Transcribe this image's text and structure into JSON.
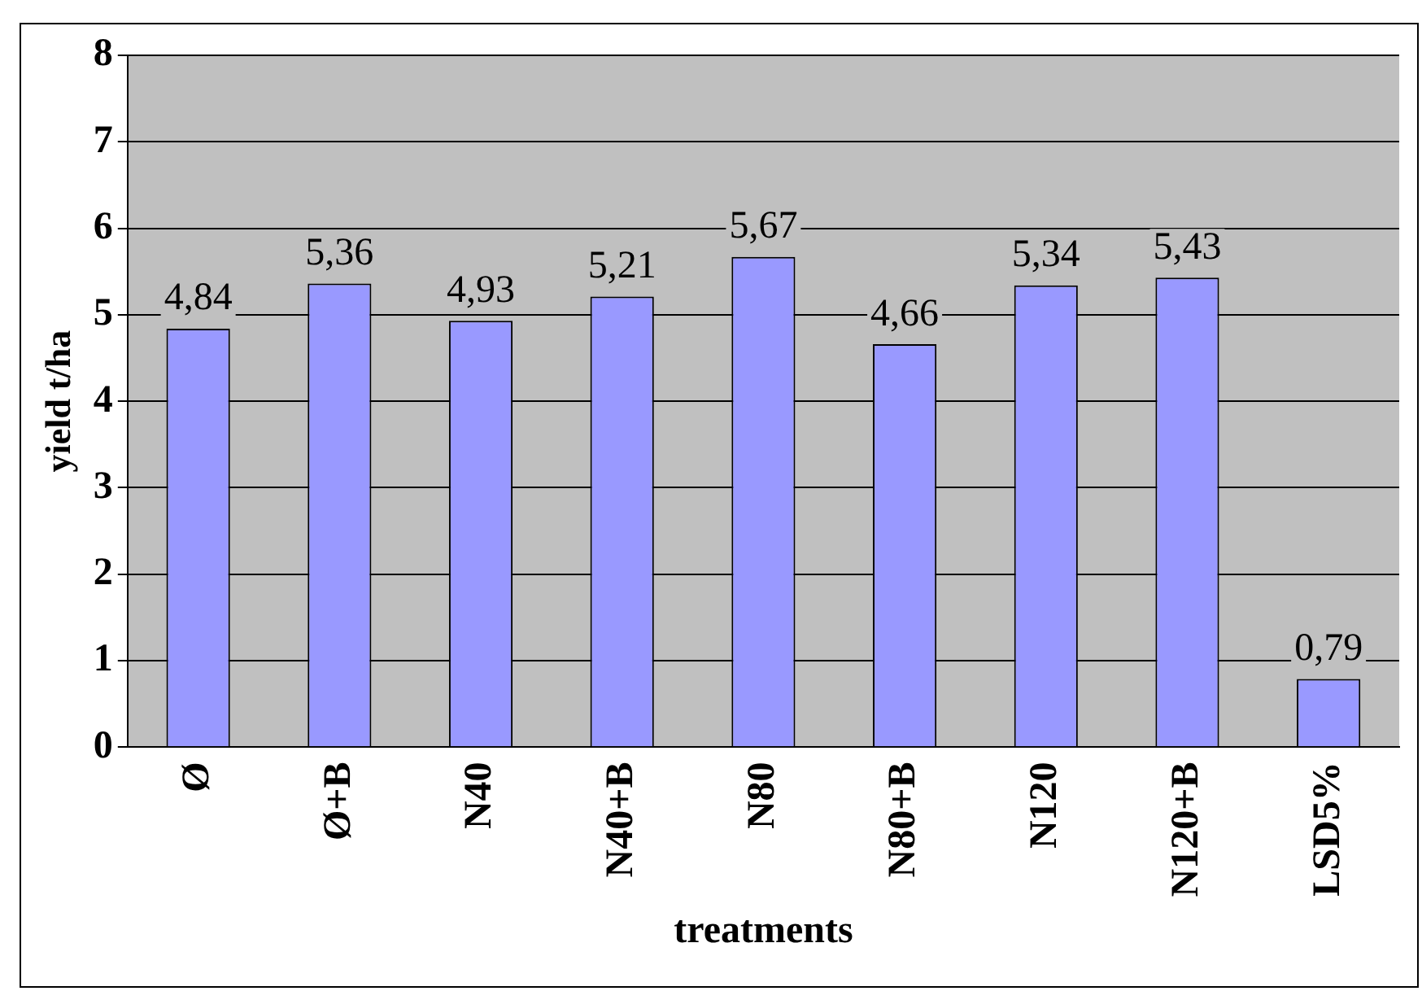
{
  "chart_data": {
    "type": "bar",
    "xlabel": "treatments",
    "ylabel": "yield t/ha",
    "categories": [
      "Ø",
      "Ø+B",
      "N40",
      "N40+B",
      "N80",
      "N80+B",
      "N120",
      "N120+B",
      "LSD5%"
    ],
    "values": [
      4.84,
      5.36,
      4.93,
      5.21,
      5.67,
      4.66,
      5.34,
      5.43,
      0.79
    ],
    "value_labels": [
      "4,84",
      "5,36",
      "4,93",
      "5,21",
      "5,67",
      "4,66",
      "5,34",
      "5,43",
      "0,79"
    ],
    "color": "#9999ff",
    "ylim": [
      0,
      8
    ],
    "yticks": [
      0,
      1,
      2,
      3,
      4,
      5,
      6,
      7,
      8
    ],
    "grid": "y",
    "legend": false
  }
}
